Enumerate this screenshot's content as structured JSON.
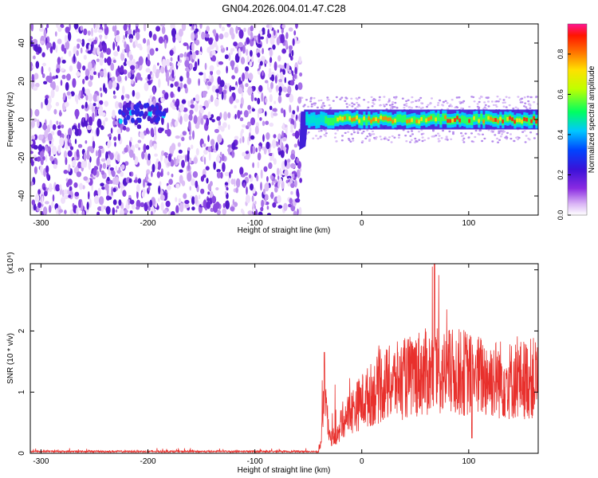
{
  "title": "GN04.2026.004.01.47.C28",
  "chart_data": [
    {
      "type": "heatmap",
      "xlabel": "Height of straight line (km)",
      "ylabel": "Frequency (Hz)",
      "xlim": [
        -310,
        165
      ],
      "ylim": [
        -50,
        50
      ],
      "xticks": [
        "-300",
        "-200",
        "-100",
        "0",
        "100"
      ],
      "yticks": [
        "-40",
        "-20",
        "0",
        "20",
        "40"
      ],
      "colorbar": {
        "label": "Normalized spectral amplitude",
        "ticks": [
          "0.0",
          "0.2",
          "0.4",
          "0.6",
          "0.8"
        ],
        "range": [
          0,
          0.95
        ]
      },
      "features": {
        "noise_region_x": [
          -310,
          -57
        ],
        "signal_onset_x": -57,
        "signal_band_center_hz": 0,
        "signal_band_halfwidth_hz": 4,
        "blob": {
          "x": -205,
          "y": 3
        }
      }
    },
    {
      "type": "line",
      "xlabel": "Height of straight line (km)",
      "ylabel": "SNR (10 * v/v)",
      "y_multiplier": "(x10⁴)",
      "xlim": [
        -310,
        165
      ],
      "ylim": [
        0,
        3.1
      ],
      "xticks": [
        "-300",
        "-200",
        "-100",
        "0",
        "100"
      ],
      "yticks": [
        "0",
        "1",
        "2",
        "3"
      ],
      "series": [
        {
          "color": "#e8302c",
          "envelope": [
            {
              "x": -310,
              "y": 0.04
            },
            {
              "x": -210,
              "y": 0.06
            },
            {
              "x": -100,
              "y": 0.04
            },
            {
              "x": -42,
              "y": 0.05
            },
            {
              "x": -38,
              "y": 0.3
            },
            {
              "x": -35,
              "y": 1.65
            },
            {
              "x": -30,
              "y": 0.45
            },
            {
              "x": -20,
              "y": 0.6
            },
            {
              "x": -10,
              "y": 0.8
            },
            {
              "x": 0,
              "y": 1.0
            },
            {
              "x": 20,
              "y": 1.3
            },
            {
              "x": 50,
              "y": 1.5
            },
            {
              "x": 68,
              "y": 3.1
            },
            {
              "x": 100,
              "y": 1.5
            },
            {
              "x": 140,
              "y": 1.4
            },
            {
              "x": 165,
              "y": 1.45
            }
          ]
        }
      ]
    }
  ]
}
